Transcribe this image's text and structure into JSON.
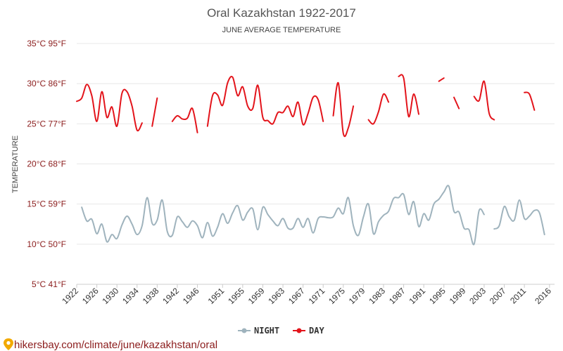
{
  "chart_data": {
    "type": "line",
    "title": "Oral Kazakhstan 1922-2017",
    "subtitle": "JUNE AVERAGE TEMPERATURE",
    "ylabel": "TEMPERATURE",
    "ylim": [
      5,
      35
    ],
    "xlim": [
      1922,
      2017
    ],
    "y_ticks": [
      {
        "value": 35,
        "label": "35°C 95°F"
      },
      {
        "value": 30,
        "label": "30°C 86°F"
      },
      {
        "value": 25,
        "label": "25°C 77°F"
      },
      {
        "value": 20,
        "label": "20°C 68°F"
      },
      {
        "value": 15,
        "label": "15°C 59°F"
      },
      {
        "value": 10,
        "label": "10°C 50°F"
      },
      {
        "value": 5,
        "label": "5°C 41°F"
      }
    ],
    "x_ticks": [
      1922,
      1926,
      1930,
      1934,
      1938,
      1942,
      1946,
      1951,
      1955,
      1959,
      1963,
      1967,
      1971,
      1975,
      1979,
      1983,
      1987,
      1991,
      1995,
      1999,
      2003,
      2007,
      2011,
      2016
    ],
    "grid": true,
    "legend_position": "bottom-center",
    "series": [
      {
        "name": "NIGHT",
        "color": "#9fb3bd",
        "segments": [
          [
            [
              1923,
              14.6
            ],
            [
              1924,
              12.9
            ],
            [
              1925,
              13.1
            ],
            [
              1926,
              11.3
            ],
            [
              1927,
              12.5
            ],
            [
              1928,
              10.3
            ],
            [
              1929,
              11.2
            ],
            [
              1930,
              10.7
            ],
            [
              1931,
              12.4
            ],
            [
              1932,
              13.5
            ],
            [
              1933,
              12.5
            ],
            [
              1934,
              11.2
            ],
            [
              1935,
              12.3
            ],
            [
              1936,
              15.8
            ],
            [
              1937,
              12.6
            ],
            [
              1938,
              13.0
            ],
            [
              1939,
              15.5
            ],
            [
              1940,
              11.6
            ],
            [
              1941,
              11.1
            ],
            [
              1942,
              13.4
            ],
            [
              1943,
              12.8
            ],
            [
              1944,
              12.1
            ],
            [
              1945,
              12.9
            ],
            [
              1946,
              12.3
            ],
            [
              1947,
              10.8
            ],
            [
              1948,
              12.7
            ],
            [
              1949,
              11.0
            ],
            [
              1950,
              12.1
            ],
            [
              1951,
              13.8
            ],
            [
              1952,
              12.6
            ],
            [
              1953,
              13.9
            ],
            [
              1954,
              14.8
            ],
            [
              1955,
              13.0
            ],
            [
              1956,
              14.0
            ],
            [
              1957,
              14.4
            ],
            [
              1958,
              11.8
            ],
            [
              1959,
              14.6
            ],
            [
              1960,
              13.7
            ],
            [
              1961,
              12.9
            ],
            [
              1962,
              12.3
            ],
            [
              1963,
              13.2
            ],
            [
              1964,
              12.0
            ],
            [
              1965,
              12.0
            ],
            [
              1966,
              13.2
            ],
            [
              1967,
              12.1
            ],
            [
              1968,
              13.2
            ],
            [
              1969,
              11.4
            ],
            [
              1970,
              13.2
            ],
            [
              1971,
              13.4
            ],
            [
              1972,
              13.3
            ],
            [
              1973,
              13.4
            ],
            [
              1974,
              14.5
            ],
            [
              1975,
              13.8
            ],
            [
              1976,
              15.8
            ],
            [
              1977,
              12.3
            ],
            [
              1978,
              11.1
            ],
            [
              1979,
              13.4
            ],
            [
              1980,
              15.0
            ],
            [
              1981,
              11.3
            ],
            [
              1982,
              12.8
            ],
            [
              1983,
              13.6
            ],
            [
              1984,
              14.1
            ],
            [
              1985,
              15.7
            ],
            [
              1986,
              15.8
            ],
            [
              1987,
              16.2
            ],
            [
              1988,
              13.7
            ],
            [
              1989,
              15.3
            ],
            [
              1990,
              12.2
            ],
            [
              1991,
              13.8
            ],
            [
              1992,
              13.0
            ],
            [
              1993,
              15.0
            ],
            [
              1994,
              15.6
            ],
            [
              1995,
              16.5
            ],
            [
              1996,
              17.2
            ],
            [
              1997,
              14.1
            ],
            [
              1998,
              14.0
            ],
            [
              1999,
              12.0
            ],
            [
              2000,
              11.8
            ],
            [
              2001,
              10.0
            ],
            [
              2002,
              14.2
            ],
            [
              2003,
              13.7
            ]
          ],
          [
            [
              2005,
              11.9
            ],
            [
              2006,
              12.3
            ],
            [
              2007,
              14.7
            ],
            [
              2008,
              13.4
            ],
            [
              2009,
              13.0
            ],
            [
              2010,
              15.5
            ],
            [
              2011,
              13.2
            ],
            [
              2012,
              13.5
            ],
            [
              2013,
              14.2
            ],
            [
              2014,
              13.9
            ],
            [
              2015,
              11.2
            ]
          ]
        ]
      },
      {
        "name": "DAY",
        "color": "#e3141b",
        "segments": [
          [
            [
              1922,
              27.8
            ],
            [
              1923,
              28.2
            ],
            [
              1924,
              29.9
            ],
            [
              1925,
              28.5
            ],
            [
              1926,
              25.3
            ],
            [
              1927,
              29.0
            ],
            [
              1928,
              25.8
            ],
            [
              1929,
              27.1
            ],
            [
              1930,
              24.7
            ],
            [
              1931,
              28.8
            ],
            [
              1932,
              29.0
            ],
            [
              1933,
              27.2
            ],
            [
              1934,
              24.2
            ],
            [
              1935,
              25.1
            ]
          ],
          [
            [
              1937,
              24.7
            ],
            [
              1938,
              28.2
            ]
          ],
          [
            [
              1941,
              25.3
            ],
            [
              1942,
              26.0
            ],
            [
              1943,
              25.6
            ],
            [
              1944,
              25.7
            ],
            [
              1945,
              26.9
            ],
            [
              1946,
              23.9
            ]
          ],
          [
            [
              1948,
              24.7
            ],
            [
              1949,
              28.5
            ],
            [
              1950,
              28.6
            ],
            [
              1951,
              27.3
            ],
            [
              1952,
              30.1
            ],
            [
              1953,
              30.8
            ],
            [
              1954,
              28.5
            ],
            [
              1955,
              29.6
            ],
            [
              1956,
              27.2
            ],
            [
              1957,
              26.9
            ],
            [
              1958,
              29.8
            ],
            [
              1959,
              25.8
            ],
            [
              1960,
              25.4
            ],
            [
              1961,
              25.0
            ],
            [
              1962,
              26.4
            ],
            [
              1963,
              26.4
            ],
            [
              1964,
              27.2
            ],
            [
              1965,
              25.9
            ],
            [
              1966,
              27.7
            ],
            [
              1967,
              24.9
            ],
            [
              1968,
              26.3
            ],
            [
              1969,
              28.3
            ],
            [
              1970,
              28.0
            ],
            [
              1971,
              25.3
            ]
          ],
          [
            [
              1973,
              26.0
            ],
            [
              1974,
              30.1
            ],
            [
              1975,
              23.8
            ],
            [
              1976,
              24.5
            ],
            [
              1977,
              27.2
            ]
          ],
          [
            [
              1980,
              25.5
            ],
            [
              1981,
              25.0
            ],
            [
              1982,
              26.5
            ],
            [
              1983,
              28.7
            ],
            [
              1984,
              27.7
            ]
          ],
          [
            [
              1986,
              30.9
            ],
            [
              1987,
              30.7
            ],
            [
              1988,
              25.9
            ],
            [
              1989,
              28.7
            ],
            [
              1990,
              26.2
            ]
          ],
          [
            [
              1994,
              30.3
            ],
            [
              1995,
              30.7
            ]
          ],
          [
            [
              1997,
              28.3
            ],
            [
              1998,
              26.9
            ]
          ],
          [
            [
              2001,
              28.4
            ],
            [
              2002,
              27.9
            ],
            [
              2003,
              30.3
            ],
            [
              2004,
              26.3
            ],
            [
              2005,
              25.5
            ]
          ],
          [
            [
              2011,
              28.9
            ],
            [
              2012,
              28.7
            ],
            [
              2013,
              26.7
            ]
          ]
        ]
      }
    ]
  },
  "legend": {
    "night_label": "NIGHT",
    "day_label": "DAY"
  },
  "source_text": "hikersbay.com/climate/june/kazakhstan/oral",
  "pin_icon": "map-pin-icon"
}
